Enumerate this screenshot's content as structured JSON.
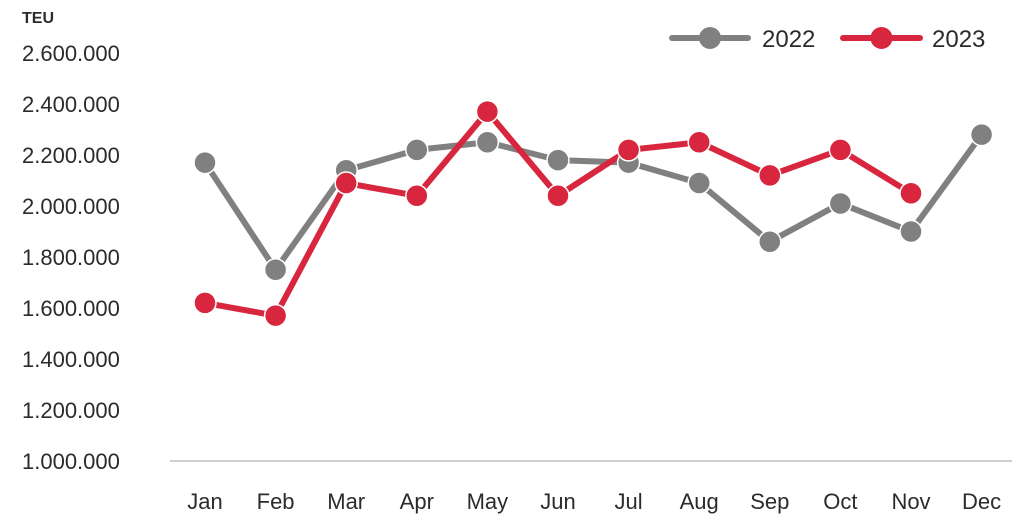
{
  "chart_data": {
    "type": "line",
    "title": "",
    "xlabel": "",
    "ylabel": "TEU",
    "ylim": [
      1000000,
      2600000
    ],
    "yticks": [
      "2.600.000",
      "2.400.000",
      "2.200.000",
      "2.000.000",
      "1.800.000",
      "1.600.000",
      "1.400.000",
      "1.200.000",
      "1.000.000"
    ],
    "ytick_values": [
      2600000,
      2400000,
      2200000,
      2000000,
      1800000,
      1600000,
      1400000,
      1200000,
      1000000
    ],
    "grid": false,
    "legend_position": "top-right",
    "categories": [
      "Jan",
      "Feb",
      "Mar",
      "Apr",
      "May",
      "Jun",
      "Jul",
      "Aug",
      "Sep",
      "Oct",
      "Nov",
      "Dec"
    ],
    "series": [
      {
        "name": "2022",
        "color": "#808080",
        "values": [
          2170000,
          1750000,
          2140000,
          2220000,
          2250000,
          2180000,
          2170000,
          2090000,
          1860000,
          2010000,
          1900000,
          2280000
        ]
      },
      {
        "name": "2023",
        "color": "#d7263d",
        "values": [
          1620000,
          1570000,
          2090000,
          2040000,
          2370000,
          2040000,
          2220000,
          2250000,
          2120000,
          2220000,
          2050000,
          null
        ]
      }
    ]
  }
}
